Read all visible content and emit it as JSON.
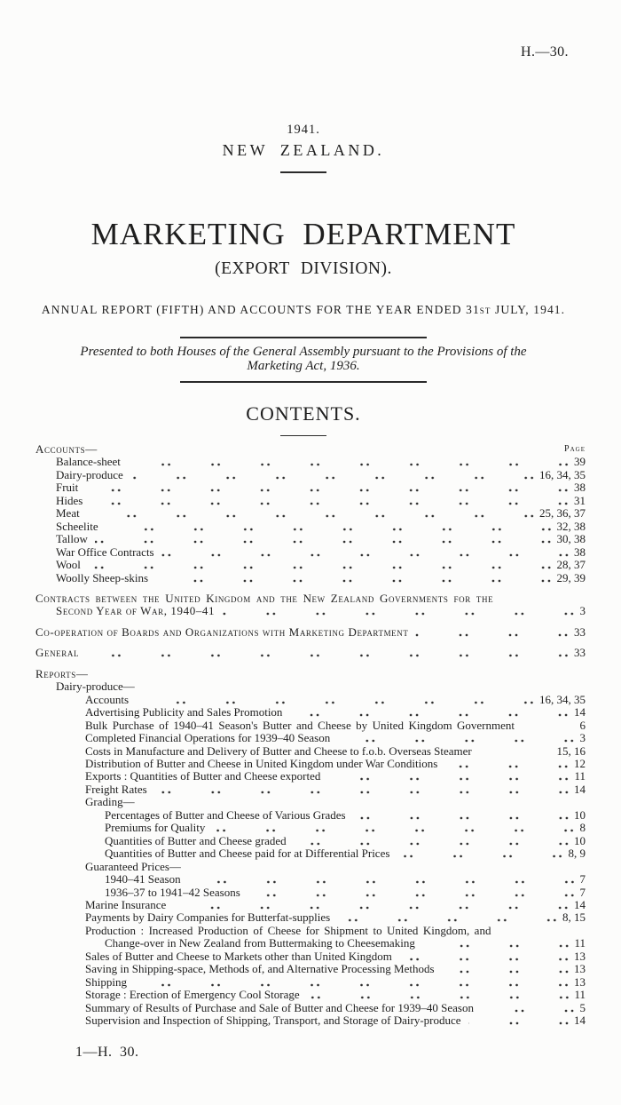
{
  "colors": {
    "ink": "#1e1e1e",
    "paper": "#fcfcfb"
  },
  "header": {
    "doc_ref": "H.—30.",
    "year": "1941.",
    "country": "NEW ZEALAND.",
    "title": "MARKETING DEPARTMENT",
    "subtitle": "(EXPORT DIVISION).",
    "report_line": "ANNUAL REPORT (FIFTH) AND ACCOUNTS FOR THE YEAR ENDED 31st JULY, 1941.",
    "presented_line1": "Presented to both Houses of the General Assembly pursuant to the Provisions of the",
    "presented_line2": "Marketing Act, 1936.",
    "contents_heading": "CONTENTS."
  },
  "toc": {
    "page_col_label": "Page",
    "accounts": {
      "heading": "Accounts—",
      "items": [
        {
          "label": "Balance-sheet",
          "page": "39"
        },
        {
          "label": "Dairy-produce",
          "page": "16, 34, 35"
        },
        {
          "label": "Fruit",
          "page": "38"
        },
        {
          "label": "Hides",
          "page": "31"
        },
        {
          "label": "Meat",
          "page": "25, 36, 37"
        },
        {
          "label": "Scheelite",
          "page": "32, 38"
        },
        {
          "label": "Tallow",
          "page": "30, 38"
        },
        {
          "label": "War Office Contracts",
          "page": "38"
        },
        {
          "label": "Wool",
          "page": "28, 37"
        },
        {
          "label": "Woolly Sheep-skins",
          "page": "29, 39"
        }
      ]
    },
    "contracts": {
      "line1": "Contracts between the United Kingdom and the New Zealand Governments for the",
      "line2": "Second Year of War, 1940–41",
      "page": "3"
    },
    "cooperation": {
      "label": "Co-operation of Boards and Organizations with Marketing Department",
      "page": "33"
    },
    "general": {
      "label": "General",
      "page": "33"
    },
    "reports": {
      "heading": "Reports—",
      "subheading": "Dairy-produce—",
      "items": [
        {
          "label": "Accounts",
          "page": "16, 34, 35"
        },
        {
          "label": "Advertising Publicity and Sales Promotion",
          "page": "14"
        },
        {
          "label": "Bulk Purchase of 1940–41 Season's Butter and Cheese by United Kingdom Government",
          "page": "6"
        },
        {
          "label": "Completed Financial Operations for 1939–40 Season",
          "page": "3"
        },
        {
          "label": "Costs in Manufacture and Delivery of Butter and Cheese to f.o.b. Overseas Steamer",
          "page": "15, 16"
        },
        {
          "label": "Distribution of Butter and Cheese in United Kingdom under War Conditions",
          "page": "12"
        },
        {
          "label": "Exports : Quantities of Butter and Cheese exported",
          "page": "11"
        },
        {
          "label": "Freight Rates",
          "page": "14"
        },
        {
          "label": "Grading—",
          "page": ""
        },
        {
          "label": "Percentages of Butter and Cheese of Various Grades",
          "page": "10"
        },
        {
          "label": "Premiums for Quality",
          "page": "8"
        },
        {
          "label": "Quantities of Butter and Cheese graded",
          "page": "10"
        },
        {
          "label": "Quantities of Butter and Cheese paid for at Differential Prices",
          "page": "8, 9"
        },
        {
          "label": "Guaranteed Prices—",
          "page": ""
        },
        {
          "label": "1940–41 Season",
          "page": "7"
        },
        {
          "label": "1936–37 to 1941–42 Seasons",
          "page": "7"
        },
        {
          "label": "Marine Insurance",
          "page": "14"
        },
        {
          "label": "Payments by Dairy Companies for Butterfat-supplies",
          "page": "8, 15"
        },
        {
          "label": "Production :  Increased Production of Cheese for Shipment to United Kingdom, and",
          "page": ""
        },
        {
          "label": "Change-over in New Zealand from Buttermaking to Cheesemaking",
          "page": "11"
        },
        {
          "label": "Sales of Butter and Cheese to Markets other than United Kingdom",
          "page": "13"
        },
        {
          "label": "Saving in Shipping-space, Methods of, and Alternative Processing Methods",
          "page": "13"
        },
        {
          "label": "Shipping",
          "page": "13"
        },
        {
          "label": "Storage : Erection of Emergency Cool Storage",
          "page": "11"
        },
        {
          "label": "Summary of Results of Purchase and Sale of Butter and Cheese for 1939–40 Season",
          "page": "5"
        },
        {
          "label": "Supervision and Inspection of Shipping, Transport, and Storage of Dairy-produce",
          "page": "14"
        }
      ]
    }
  },
  "footer": {
    "imprint": "1—H. 30."
  }
}
